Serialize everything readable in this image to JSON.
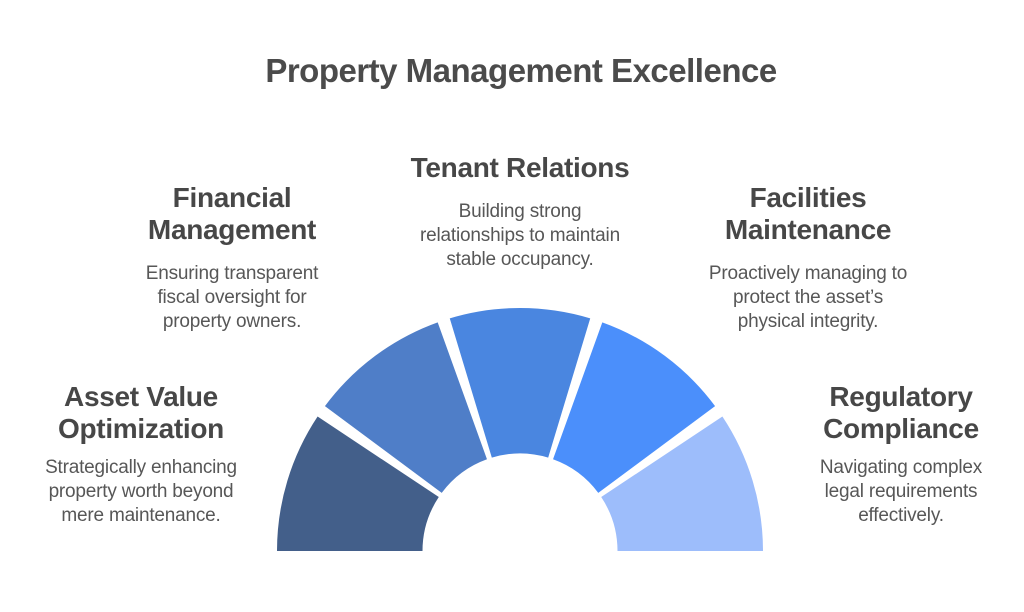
{
  "title": "Property Management Excellence",
  "sections": [
    {
      "id": "asset-value-optimization",
      "heading": "Asset Value\nOptimization",
      "description": "Strategically enhancing\nproperty worth beyond\nmere maintenance.",
      "color": "#435f8a"
    },
    {
      "id": "financial-management",
      "heading": "Financial\nManagement",
      "description": "Ensuring transparent\nfiscal oversight for\nproperty owners.",
      "color": "#4f7ec8"
    },
    {
      "id": "tenant-relations",
      "heading": "Tenant Relations",
      "description": "Building strong\nrelationships to maintain\nstable occupancy.",
      "color": "#4a86e0"
    },
    {
      "id": "facilities-maintenance",
      "heading": "Facilities\nMaintenance",
      "description": "Proactively managing to\nprotect the asset’s\nphysical integrity.",
      "color": "#4b8ffb"
    },
    {
      "id": "regulatory-compliance",
      "heading": "Regulatory\nCompliance",
      "description": "Navigating complex\nlegal requirements\neffectively.",
      "color": "#9dbdfb"
    }
  ],
  "fan": {
    "type": "semicircle-fan",
    "segment_order": "darkest-left to lightest-right",
    "segment_count": 5,
    "background": "#ffffff"
  }
}
